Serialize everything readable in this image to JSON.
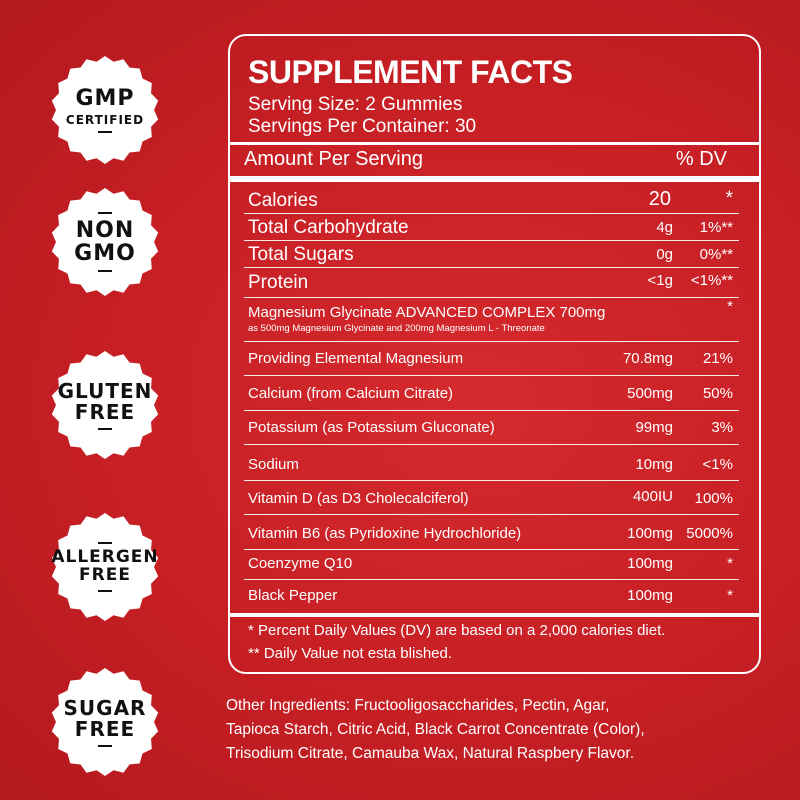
{
  "badges": [
    {
      "line1": "GMP",
      "line2": "CERTIFIED"
    },
    {
      "line1": "NON",
      "line2": "GMO"
    },
    {
      "line1": "GLUTEN",
      "line2": "FREE"
    },
    {
      "line1": "ALLERGEN",
      "line2": "FREE"
    },
    {
      "line1": "SUGAR",
      "line2": "FREE"
    }
  ],
  "facts": {
    "title": "SUPPLEMENT FACTS",
    "serving_size": "Serving Size: 2 Gummies",
    "servings_per_container": "Servings Per Container: 30",
    "amount_header": "Amount Per Serving",
    "dv_header": "% DV",
    "rows": [
      {
        "name": "Calories",
        "amount": "20",
        "dv": "*"
      },
      {
        "name": "Total Carbohydrate",
        "amount": "4g",
        "dv": "1%**"
      },
      {
        "name": "Total Sugars",
        "amount": "0g",
        "dv": "0%**"
      },
      {
        "name": "Protein",
        "amount": "<1g",
        "dv": "<1%**"
      },
      {
        "name": "Magnesium Glycinate ADVANCED COMPLEX 700mg",
        "amount": "",
        "dv": "*",
        "note": "as 500mg Magnesium Glycinate and 200mg Magnesium L - Threonate"
      },
      {
        "name": "Providing Elemental Magnesium",
        "amount": "70.8mg",
        "dv": "21%"
      },
      {
        "name": "Calcium (from Calcium Citrate)",
        "amount": "500mg",
        "dv": "50%"
      },
      {
        "name": "Potassium (as Potassium Gluconate)",
        "amount": "99mg",
        "dv": "3%"
      },
      {
        "name": "Sodium",
        "amount": "10mg",
        "dv": "<1%"
      },
      {
        "name": "Vitamin D (as D3 Cholecalciferol)",
        "amount": "400IU",
        "dv": "100%"
      },
      {
        "name": "Vitamin B6 (as Pyridoxine Hydrochloride)",
        "amount": "100mg",
        "dv": "5000%"
      },
      {
        "name": "Coenzyme Q10",
        "amount": "100mg",
        "dv": "*"
      },
      {
        "name": "Black Pepper",
        "amount": "100mg",
        "dv": "*"
      }
    ],
    "footnote1": "* Percent Daily Values (DV) are based on a 2,000 calories diet.",
    "footnote2": "** Daily Value not esta blished."
  },
  "other_ingredients": [
    "Other Ingredients: Fructooligosaccharides, Pectin, Agar,",
    "Tapioca Starch, Citric Acid, Black Carrot Concentrate (Color),",
    "Trisodium Citrate, Camauba Wax, Natural Raspbery Flavor."
  ],
  "colors": {
    "background": "#c61f24",
    "text": "#ffffff",
    "badge": "#ffffff",
    "badge_text": "#111111"
  }
}
